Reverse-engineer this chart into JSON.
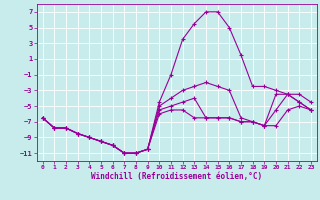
{
  "xlabel": "Windchill (Refroidissement éolien,°C)",
  "xlim": [
    -0.5,
    23.5
  ],
  "ylim": [
    -12,
    8
  ],
  "xticks": [
    0,
    1,
    2,
    3,
    4,
    5,
    6,
    7,
    8,
    9,
    10,
    11,
    12,
    13,
    14,
    15,
    16,
    17,
    18,
    19,
    20,
    21,
    22,
    23
  ],
  "yticks": [
    -11,
    -9,
    -7,
    -5,
    -3,
    -1,
    1,
    3,
    5,
    7
  ],
  "bg_color": "#c8ecec",
  "line_color": "#990099",
  "grid_color": "#ffffff",
  "curves": [
    {
      "x": [
        0,
        1,
        2,
        3,
        4,
        5,
        6,
        7,
        8,
        9,
        10,
        11,
        12,
        13,
        14,
        15,
        16,
        17,
        18,
        19,
        20,
        21,
        22,
        23
      ],
      "y": [
        -6.5,
        -7.8,
        -7.8,
        -8.5,
        -9.0,
        -9.5,
        -10.0,
        -11.0,
        -11.0,
        -10.5,
        -4.5,
        -1.0,
        3.5,
        5.5,
        7.0,
        7.0,
        5.0,
        1.5,
        -2.5,
        -2.5,
        -3.0,
        -3.5,
        -4.5,
        -5.5
      ]
    },
    {
      "x": [
        0,
        1,
        2,
        3,
        4,
        5,
        6,
        7,
        8,
        9,
        10,
        11,
        12,
        13,
        14,
        15,
        16,
        17,
        18,
        19,
        20,
        21,
        22,
        23
      ],
      "y": [
        -6.5,
        -7.8,
        -7.8,
        -8.5,
        -9.0,
        -9.5,
        -10.0,
        -11.0,
        -11.0,
        -10.5,
        -5.0,
        -4.0,
        -3.0,
        -2.5,
        -2.0,
        -2.5,
        -3.0,
        -6.5,
        -7.0,
        -7.5,
        -3.5,
        -3.5,
        -4.5,
        -5.5
      ]
    },
    {
      "x": [
        0,
        1,
        2,
        3,
        4,
        5,
        6,
        7,
        8,
        9,
        10,
        11,
        12,
        13,
        14,
        15,
        16,
        17,
        18,
        19,
        20,
        21,
        22,
        23
      ],
      "y": [
        -6.5,
        -7.8,
        -7.8,
        -8.5,
        -9.0,
        -9.5,
        -10.0,
        -11.0,
        -11.0,
        -10.5,
        -5.5,
        -5.0,
        -4.5,
        -4.0,
        -6.5,
        -6.5,
        -6.5,
        -7.0,
        -7.0,
        -7.5,
        -5.5,
        -3.5,
        -3.5,
        -4.5
      ]
    },
    {
      "x": [
        0,
        1,
        2,
        3,
        4,
        5,
        6,
        7,
        8,
        9,
        10,
        11,
        12,
        13,
        14,
        15,
        16,
        17,
        18,
        19,
        20,
        21,
        22,
        23
      ],
      "y": [
        -6.5,
        -7.8,
        -7.8,
        -8.5,
        -9.0,
        -9.5,
        -10.0,
        -11.0,
        -11.0,
        -10.5,
        -6.0,
        -5.5,
        -5.5,
        -6.5,
        -6.5,
        -6.5,
        -6.5,
        -7.0,
        -7.0,
        -7.5,
        -7.5,
        -5.5,
        -5.0,
        -5.5
      ]
    }
  ]
}
